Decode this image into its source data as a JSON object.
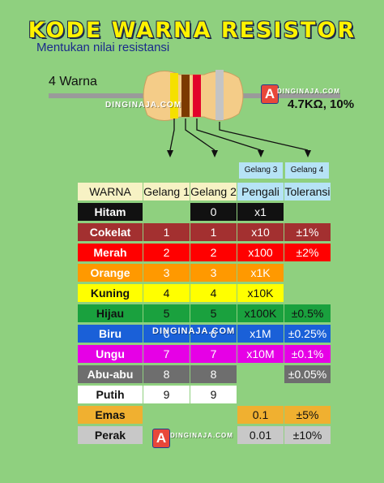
{
  "title": "KODE WARNA RESISTOR",
  "subtitle": "Mentukan nilai resistansi",
  "band_count_label": "4 Warna",
  "resistor_value": "4.7KΩ, 10%",
  "watermarks": [
    "DINGINAJA.COM",
    "DINGINAJA.COM",
    "DINGINAJA.COM",
    "DINGINAJA.COM"
  ],
  "logo_letter": "A",
  "resistor_bands": [
    "#f5e000",
    "#7c3a00",
    "#e2002a",
    "#c4c4c4"
  ],
  "headers": {
    "warna": "WARNA",
    "gelang1": "Gelang 1",
    "gelang2": "Gelang 2",
    "gelang3": "Gelang 3",
    "gelang4": "Gelang 4",
    "pengali": "Pengali",
    "toleransi": "Toleransi"
  },
  "rows": [
    {
      "name": "Hitam",
      "color": "#111111",
      "text": "#ffffff",
      "g1": "",
      "g2": "0",
      "mult": "x1",
      "tol": ""
    },
    {
      "name": "Cokelat",
      "color": "#a33030",
      "text": "#ffffff",
      "g1": "1",
      "g2": "1",
      "mult": "x10",
      "tol": "±1%"
    },
    {
      "name": "Merah",
      "color": "#ff0000",
      "text": "#ffffff",
      "g1": "2",
      "g2": "2",
      "mult": "x100",
      "tol": "±2%"
    },
    {
      "name": "Orange",
      "color": "#ff9900",
      "text": "#ffffff",
      "g1": "3",
      "g2": "3",
      "mult": "x1K",
      "tol": ""
    },
    {
      "name": "Kuning",
      "color": "#ffff00",
      "text": "#111111",
      "g1": "4",
      "g2": "4",
      "mult": "x10K",
      "tol": ""
    },
    {
      "name": "Hijau",
      "color": "#1aa13e",
      "text": "#111111",
      "g1": "5",
      "g2": "5",
      "mult": "x100K",
      "tol": "±0.5%"
    },
    {
      "name": "Biru",
      "color": "#1a60d8",
      "text": "#ffffff",
      "g1": "6",
      "g2": "6",
      "mult": "x1M",
      "tol": "±0.25%"
    },
    {
      "name": "Ungu",
      "color": "#e600e6",
      "text": "#ffffff",
      "g1": "7",
      "g2": "7",
      "mult": "x10M",
      "tol": "±0.1%"
    },
    {
      "name": "Abu-abu",
      "color": "#6e6e6e",
      "text": "#ffffff",
      "g1": "8",
      "g2": "8",
      "mult": "",
      "tol": "±0.05%"
    },
    {
      "name": "Putih",
      "color": "#ffffff",
      "text": "#111111",
      "g1": "9",
      "g2": "9",
      "mult": "",
      "tol": ""
    },
    {
      "name": "Emas",
      "color": "#f0b030",
      "text": "#111111",
      "g1": "",
      "g2": "",
      "mult": "0.1",
      "tol": "±5%"
    },
    {
      "name": "Perak",
      "color": "#c8c8c8",
      "text": "#111111",
      "g1": "",
      "g2": "",
      "mult": "0.01",
      "tol": "±10%"
    }
  ]
}
